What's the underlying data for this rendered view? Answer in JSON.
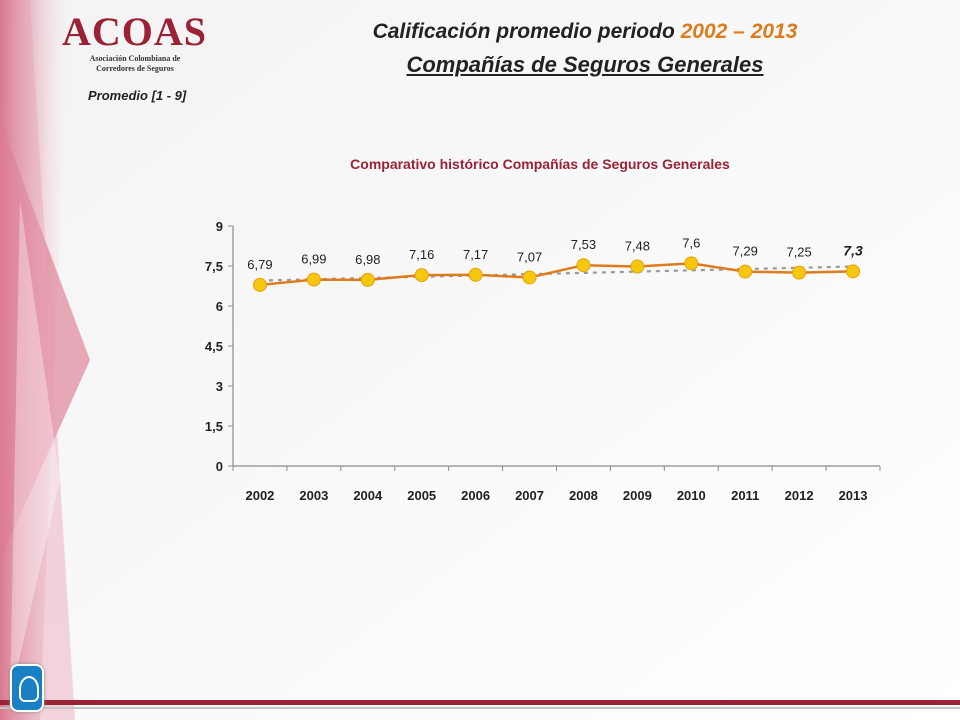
{
  "logo": {
    "main": "ACOAS",
    "sub1": "Asociación Colombiana de",
    "sub2": "Corredores de Seguros"
  },
  "header": {
    "title_prefix": "Calificación promedio periodo ",
    "title_years": "2002 – 2013",
    "subtitle": "Compañías de Seguros Generales",
    "range_label": "Promedio  [1 - 9]"
  },
  "colors": {
    "brand": "#9b2236",
    "accent": "#e07b1d",
    "point": "#f7c70f",
    "trend": "#999999"
  },
  "chart_data": {
    "type": "line",
    "title": "Comparativo histórico Compañías de Seguros Generales",
    "categories": [
      "2002",
      "2003",
      "2004",
      "2005",
      "2006",
      "2007",
      "2008",
      "2009",
      "2010",
      "2011",
      "2012",
      "2013"
    ],
    "values": [
      6.79,
      6.99,
      6.98,
      7.16,
      7.17,
      7.07,
      7.53,
      7.48,
      7.6,
      7.29,
      7.25,
      7.3
    ],
    "value_labels": [
      "6,79",
      "6,99",
      "6,98",
      "7,16",
      "7,17",
      "7,07",
      "7,53",
      "7,48",
      "7,6",
      "7,29",
      "7,25",
      "7,3"
    ],
    "ylim": [
      0,
      9
    ],
    "yticks": [
      0,
      1.5,
      3,
      4.5,
      6,
      7.5,
      9
    ],
    "ytick_labels": [
      "0",
      "1,5",
      "3",
      "4,5",
      "6",
      "7,5",
      "9"
    ],
    "trendline": "dashed",
    "grid": false
  }
}
